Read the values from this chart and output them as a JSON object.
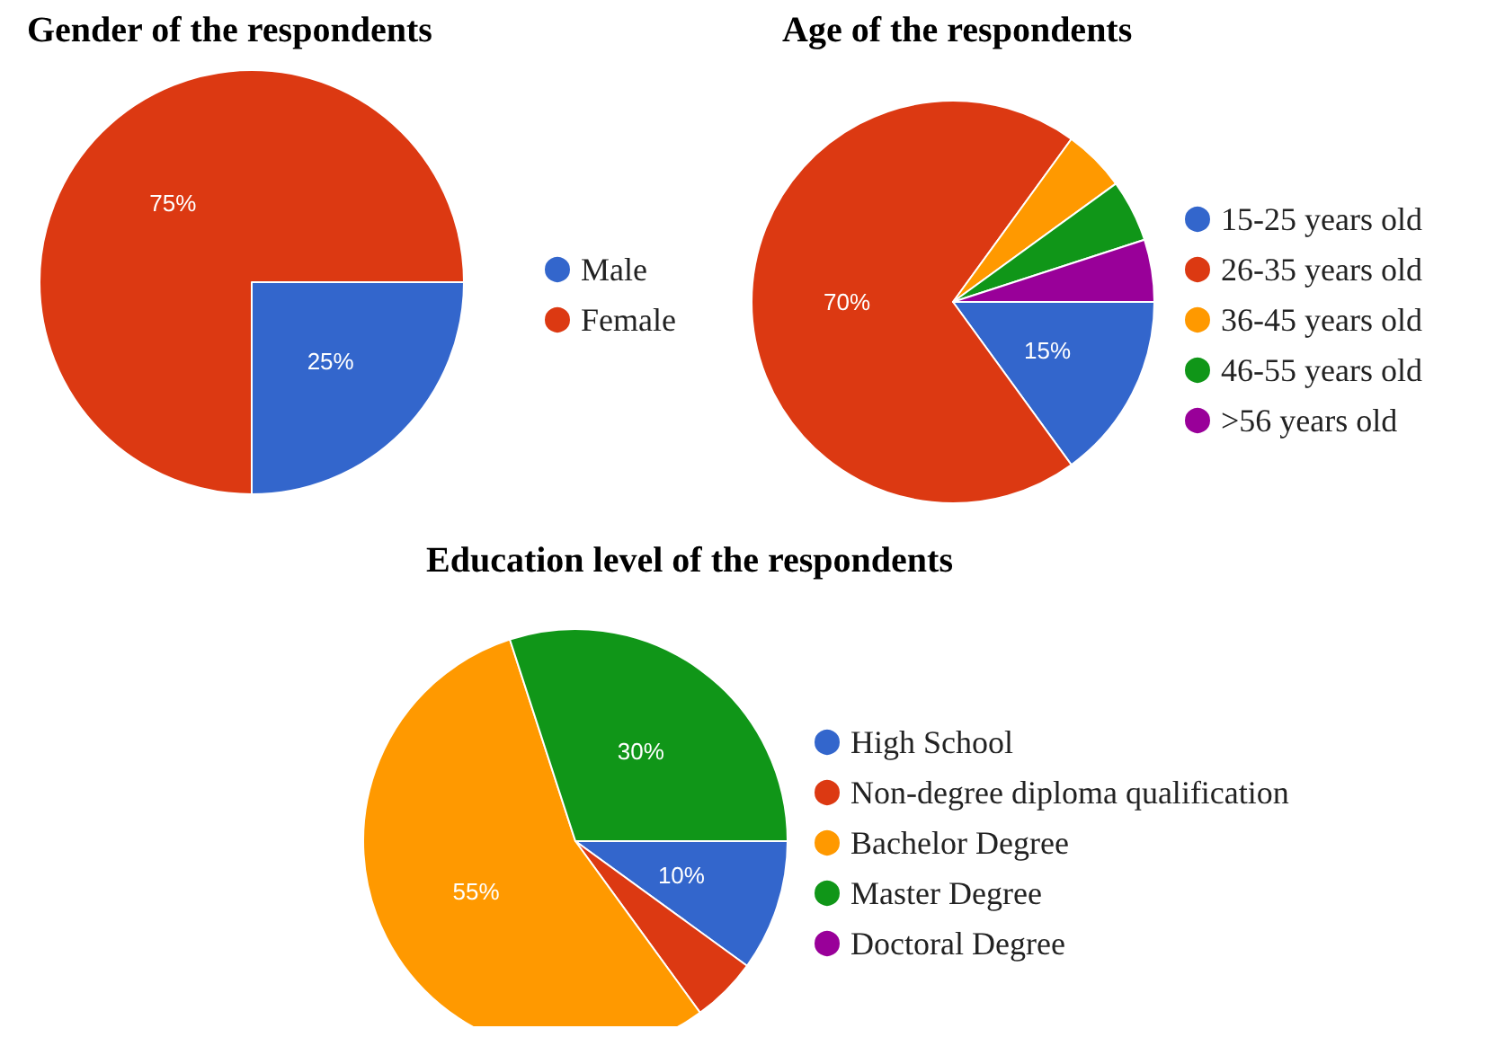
{
  "chart_data": [
    {
      "type": "pie",
      "title": "Gender of the respondents",
      "categories": [
        "Male",
        "Female"
      ],
      "values": [
        25,
        75
      ],
      "colors": [
        "#3366cc",
        "#dc3912"
      ],
      "value_labels": [
        "25%",
        "75%"
      ],
      "legend": "right"
    },
    {
      "type": "pie",
      "title": "Age of the respondents",
      "categories": [
        "15-25 years old",
        "26-35 years old",
        "36-45 years old",
        "46-55 years old",
        ">56 years old"
      ],
      "values": [
        15,
        70,
        5,
        5,
        5
      ],
      "colors": [
        "#3366cc",
        "#dc3912",
        "#ff9900",
        "#109618",
        "#990099"
      ],
      "value_labels": [
        "15%",
        "70%",
        null,
        null,
        null
      ],
      "legend": "right"
    },
    {
      "type": "pie",
      "title": "Education level of the respondents",
      "categories": [
        "High School",
        "Non-degree diploma qualification",
        "Bachelor Degree",
        "Master Degree",
        "Doctoral Degree"
      ],
      "values": [
        10,
        5,
        55,
        30,
        0
      ],
      "colors": [
        "#3366cc",
        "#dc3912",
        "#ff9900",
        "#109618",
        "#990099"
      ],
      "value_labels": [
        "10%",
        null,
        "55%",
        "30%",
        null
      ],
      "legend": "right"
    }
  ]
}
